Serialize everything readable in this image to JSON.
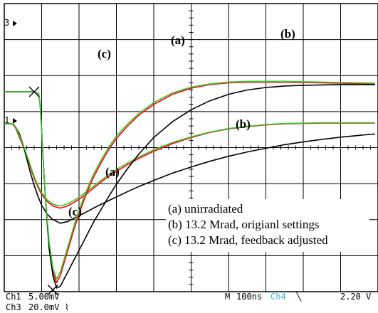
{
  "chart_data": {
    "type": "line",
    "title": "",
    "xlabel": "",
    "ylabel": "",
    "grid": true,
    "grid_divisions": {
      "x": 10,
      "y": 8
    },
    "trace_order": [
      "a",
      "b",
      "c"
    ],
    "trace_colors": {
      "a": "#ff0000",
      "b": "#000000",
      "c": "#33cc33"
    },
    "panels": [
      {
        "name": "upper",
        "channel_marker": "3",
        "x": [
          0,
          0.03,
          0.09,
          0.15,
          0.2,
          0.25,
          0.3,
          0.4,
          0.5,
          0.6,
          0.7,
          0.8,
          0.9,
          1.0,
          1.15,
          1.3,
          1.5,
          1.7,
          1.9,
          2.1,
          2.3,
          2.5,
          2.7,
          3.0,
          3.3,
          3.6,
          4.0,
          4.5,
          5.0,
          5.5,
          6.0,
          6.5,
          7.0,
          7.5,
          8.0,
          8.5,
          9.0,
          9.5,
          9.92
        ],
        "series": [
          {
            "label": "a",
            "values": [
              0.66,
              0.66,
              0.66,
              0.66,
              0.66,
              0.62,
              0.55,
              0.3,
              0.05,
              -0.25,
              -0.55,
              -0.85,
              -1.1,
              -1.3,
              -1.5,
              -1.62,
              -1.68,
              -1.62,
              -1.5,
              -1.36,
              -1.2,
              -1.03,
              -0.87,
              -0.66,
              -0.47,
              -0.3,
              -0.1,
              0.11,
              0.28,
              0.42,
              0.52,
              0.58,
              0.63,
              0.66,
              0.67,
              0.68,
              0.68,
              0.68,
              0.68
            ]
          },
          {
            "label": "b",
            "values": [
              0.66,
              0.66,
              0.66,
              0.66,
              0.66,
              0.64,
              0.58,
              0.4,
              0.1,
              -0.3,
              -0.7,
              -1.05,
              -1.35,
              -1.6,
              -1.85,
              -2.0,
              -2.1,
              -2.05,
              -1.94,
              -1.84,
              -1.73,
              -1.62,
              -1.52,
              -1.37,
              -1.22,
              -1.08,
              -0.91,
              -0.71,
              -0.54,
              -0.38,
              -0.24,
              -0.12,
              -0.02,
              0.08,
              0.16,
              0.23,
              0.29,
              0.34,
              0.38
            ]
          },
          {
            "label": "c",
            "values": [
              0.66,
              0.66,
              0.66,
              0.66,
              0.66,
              0.64,
              0.58,
              0.35,
              0.1,
              -0.2,
              -0.5,
              -0.8,
              -1.05,
              -1.25,
              -1.45,
              -1.57,
              -1.62,
              -1.56,
              -1.44,
              -1.3,
              -1.15,
              -0.98,
              -0.82,
              -0.61,
              -0.42,
              -0.26,
              -0.06,
              0.14,
              0.3,
              0.43,
              0.53,
              0.59,
              0.64,
              0.67,
              0.68,
              0.69,
              0.69,
              0.69,
              0.69
            ]
          }
        ]
      },
      {
        "name": "lower",
        "channel_marker": "1",
        "x": [
          0,
          0.5,
          0.8,
          0.92,
          0.96,
          1.0,
          1.05,
          1.1,
          1.2,
          1.3,
          1.4,
          1.5,
          1.6,
          1.7,
          1.8,
          1.9,
          2.0,
          2.1,
          2.2,
          2.3,
          2.4,
          2.6,
          2.8,
          3.0,
          3.3,
          3.6,
          4.0,
          4.5,
          5.0,
          5.5,
          6.0,
          6.5,
          7.0,
          7.5,
          8.0,
          8.5,
          9.0,
          9.5,
          9.92
        ],
        "series": [
          {
            "label": "a",
            "values": [
              1.55,
              1.55,
              1.55,
              1.5,
              1.2,
              0.5,
              -0.5,
              -1.4,
              -2.7,
              -3.45,
              -3.75,
              -3.55,
              -3.2,
              -2.85,
              -2.5,
              -2.15,
              -1.85,
              -1.55,
              -1.28,
              -1.03,
              -0.8,
              -0.4,
              -0.05,
              0.25,
              0.6,
              0.9,
              1.2,
              1.48,
              1.65,
              1.75,
              1.8,
              1.82,
              1.82,
              1.82,
              1.81,
              1.8,
              1.79,
              1.78,
              1.77
            ]
          },
          {
            "label": "b",
            "values": [
              1.55,
              1.55,
              1.55,
              1.5,
              1.2,
              0.5,
              -0.5,
              -1.4,
              -2.8,
              -3.55,
              -3.9,
              -3.85,
              -3.65,
              -3.45,
              -3.25,
              -3.05,
              -2.85,
              -2.65,
              -2.45,
              -2.25,
              -2.05,
              -1.7,
              -1.35,
              -1.02,
              -0.58,
              -0.18,
              0.28,
              0.72,
              1.05,
              1.3,
              1.48,
              1.6,
              1.67,
              1.71,
              1.73,
              1.74,
              1.75,
              1.75,
              1.75
            ]
          },
          {
            "label": "c",
            "values": [
              1.55,
              1.55,
              1.55,
              1.5,
              1.2,
              0.5,
              -0.5,
              -1.4,
              -2.6,
              -3.35,
              -3.65,
              -3.45,
              -3.1,
              -2.75,
              -2.4,
              -2.05,
              -1.75,
              -1.45,
              -1.2,
              -0.95,
              -0.72,
              -0.33,
              0.02,
              0.32,
              0.66,
              0.95,
              1.25,
              1.52,
              1.68,
              1.77,
              1.82,
              1.84,
              1.84,
              1.84,
              1.83,
              1.82,
              1.81,
              1.8,
              1.79
            ]
          }
        ]
      }
    ],
    "trigger_markers": [
      {
        "x": 0.8,
        "y": 1.55
      },
      {
        "x": 1.3,
        "y": -3.95
      }
    ]
  },
  "annotations": {
    "upper_a": "(a)",
    "upper_b": "(b)",
    "upper_c": "(c)",
    "lower_a": "(a)",
    "lower_b": "(b)",
    "lower_c": "(c)"
  },
  "legend": {
    "items": [
      "(a) unirradiated",
      "(b) 13.2 Mrad, origianl settings",
      "(c) 13.2 Mrad, feedback adjusted"
    ]
  },
  "readout": {
    "ch1": "Ch1",
    "ch1_scale": "5.00mV",
    "ch3": "Ch3",
    "ch3_scale": "20.0mV",
    "ch3_coupling_symbol": "⌇",
    "timebase_prefix": "M",
    "timebase": "100ns",
    "trigger_source": "Ch4",
    "trigger_slope": "╲",
    "trigger_level": "2.20 V",
    "trigger_source_color": "#33b5e5"
  }
}
